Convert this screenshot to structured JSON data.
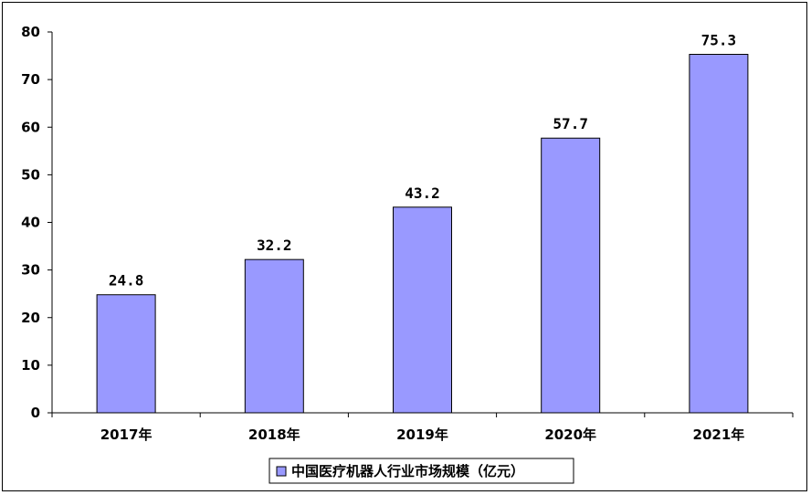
{
  "chart_data": {
    "type": "bar",
    "categories": [
      "2017年",
      "2018年",
      "2019年",
      "2020年",
      "2021年"
    ],
    "series": [
      {
        "name": "中国医疗机器人行业市场规模（亿元）",
        "values": [
          24.8,
          32.2,
          43.2,
          57.7,
          75.3
        ],
        "data_labels": [
          "24.8",
          "32.2",
          "43.2",
          "57.7",
          "75.3"
        ]
      }
    ],
    "ylim": [
      0,
      80
    ],
    "yticks": [
      0,
      10,
      20,
      30,
      40,
      50,
      60,
      70,
      80
    ],
    "grid": false,
    "legend_position": "bottom",
    "colors": {
      "bar_fill": "#9999ff",
      "bar_stroke": "#000000",
      "axis": "#000000",
      "background": "#ffffff"
    }
  }
}
